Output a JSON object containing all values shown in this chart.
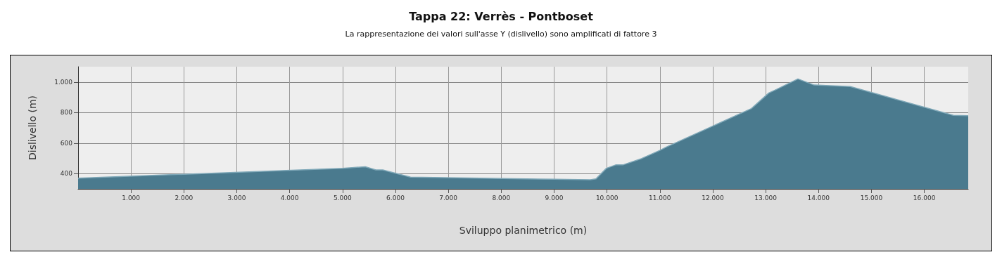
{
  "chart_data": {
    "type": "area",
    "title": "Tappa 22: Verrès - Pontboset",
    "subtitle": "La rappresentazione dei valori sull'asse Y (dislivello) sono amplificati di fattore 3",
    "xlabel": "Sviluppo planimetrico (m)",
    "ylabel": "Dislivello (m)",
    "x": [
      0,
      5000,
      5430,
      5630,
      5760,
      6285,
      9000,
      9685,
      9790,
      9990,
      10165,
      10300,
      10650,
      11000,
      11130,
      12730,
      13060,
      13190,
      13610,
      13915,
      14600,
      16550,
      16830
    ],
    "series": [
      {
        "color": "#4a7a8e",
        "values": [
          370,
          435,
          445,
          424,
          424,
          377,
          363,
          360,
          365,
          435,
          457,
          457,
          498,
          552,
          575,
          826,
          928,
          949,
          1020,
          980,
          970,
          782,
          779
        ]
      }
    ],
    "xlim": [
      0,
      16830
    ],
    "ylim": [
      300,
      1100
    ],
    "xticks": [
      {
        "value": 1000,
        "label": "1.000"
      },
      {
        "value": 2000,
        "label": "2.000"
      },
      {
        "value": 3000,
        "label": "3.000"
      },
      {
        "value": 4000,
        "label": "4.000"
      },
      {
        "value": 5000,
        "label": "5.000"
      },
      {
        "value": 6000,
        "label": "6.000"
      },
      {
        "value": 7000,
        "label": "7.000"
      },
      {
        "value": 8000,
        "label": "8.000"
      },
      {
        "value": 9000,
        "label": "9.000"
      },
      {
        "value": 10000,
        "label": "10.000"
      },
      {
        "value": 11000,
        "label": "11.000"
      },
      {
        "value": 12000,
        "label": "12.000"
      },
      {
        "value": 13000,
        "label": "13.000"
      },
      {
        "value": 14000,
        "label": "14.000"
      },
      {
        "value": 15000,
        "label": "15.000"
      },
      {
        "value": 16000,
        "label": "16.000"
      }
    ],
    "yticks": [
      400,
      600,
      800,
      {
        "value": 1000,
        "label": "1.000"
      }
    ],
    "grid": true,
    "marker": "none"
  }
}
